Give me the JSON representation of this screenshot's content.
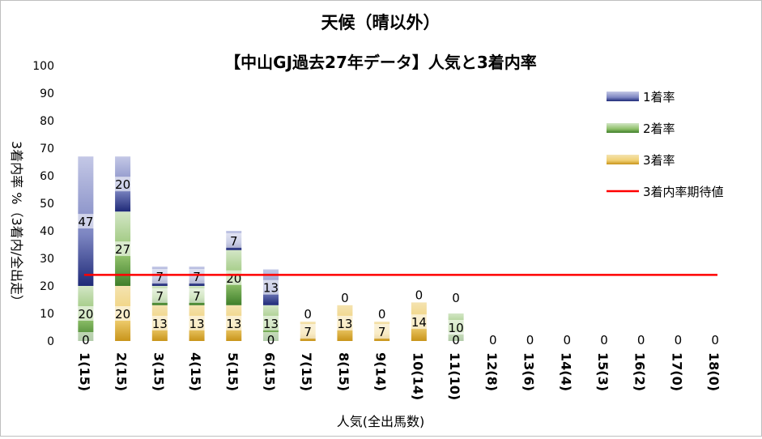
{
  "chart_data": {
    "type": "bar",
    "stacked": true,
    "title": "天候（晴以外）",
    "subtitle": "【中山GJ過去27年データ】人気と3着内率",
    "xlabel": "人気(全出馬数)",
    "ylabel": "3着内率 %（3着内/全出走）",
    "ylim": [
      0,
      100
    ],
    "yticks": [
      0,
      10,
      20,
      30,
      40,
      50,
      60,
      70,
      80,
      90,
      100
    ],
    "grid": false,
    "legend_position": "right",
    "categories": [
      "1(15)",
      "2(15)",
      "3(15)",
      "4(15)",
      "5(15)",
      "6(15)",
      "7(15)",
      "8(15)",
      "9(14)",
      "10(14)",
      "11(10)",
      "12(8)",
      "13(6)",
      "14(4)",
      "15(3)",
      "16(2)",
      "17(0)",
      "18(0)"
    ],
    "series": [
      {
        "name": "3着率",
        "color": "#d9a61e",
        "values": [
          0,
          20,
          13,
          13,
          13,
          0,
          7,
          13,
          7,
          14,
          0,
          0,
          0,
          0,
          0,
          0,
          0,
          0
        ]
      },
      {
        "name": "2着率",
        "color": "#5a9a3c",
        "values": [
          20,
          27,
          7,
          7,
          20,
          13,
          0,
          0,
          0,
          0,
          10,
          0,
          0,
          0,
          0,
          0,
          0,
          0
        ]
      },
      {
        "name": "1着率",
        "color": "#2b3a8c",
        "values": [
          47,
          20,
          7,
          7,
          7,
          13,
          0,
          0,
          0,
          0,
          0,
          0,
          0,
          0,
          0,
          0,
          0,
          0
        ]
      }
    ],
    "data_labels": [
      [
        "0",
        "20",
        "47"
      ],
      [
        "20",
        "27",
        "20"
      ],
      [
        "13",
        "7",
        "7"
      ],
      [
        "13",
        "7",
        "7"
      ],
      [
        "13",
        "20",
        "7"
      ],
      [
        "0",
        "13",
        "13"
      ],
      [
        "7",
        "0",
        ""
      ],
      [
        "13",
        "0",
        ""
      ],
      [
        "7",
        "0",
        ""
      ],
      [
        "14",
        "0",
        ""
      ],
      [
        "0",
        "10",
        "0"
      ],
      [
        "0",
        "",
        ""
      ],
      [
        "0",
        "",
        ""
      ],
      [
        "0",
        "",
        ""
      ],
      [
        "0",
        "",
        ""
      ],
      [
        "0",
        "",
        ""
      ],
      [
        "0",
        "",
        ""
      ],
      [
        "0",
        "",
        ""
      ]
    ],
    "reference_line": {
      "name": "3着内率期待値",
      "value": 24,
      "color": "#ff0000"
    },
    "legend_order": [
      "1着率",
      "2着率",
      "3着率",
      "3着内率期待値"
    ]
  }
}
